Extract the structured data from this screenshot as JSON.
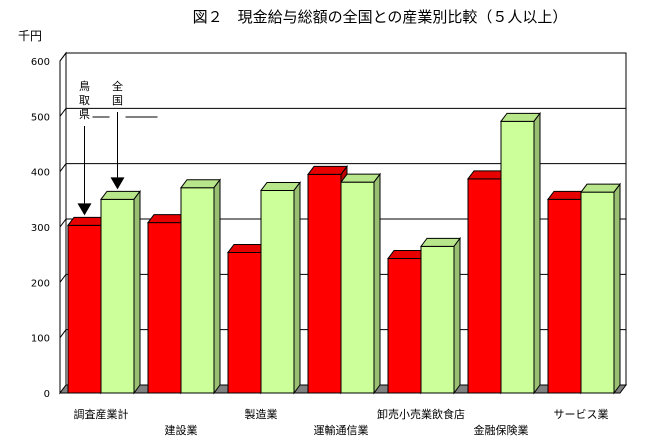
{
  "chart_data": {
    "type": "bar",
    "title": "図２　現金給与総額の全国との産業別比較（５人以上）",
    "ylabel": "千円",
    "xlabel": "",
    "ylim": [
      0,
      600
    ],
    "yticks": [
      0,
      100,
      200,
      300,
      400,
      500,
      600
    ],
    "grid": true,
    "chart_style": "3d-clustered-bar",
    "categories": [
      "調査産業計",
      "建設業",
      "製造業",
      "運輸通信業",
      "卸売小売業飲食店",
      "金融保険業",
      "サービス業"
    ],
    "series": [
      {
        "name": "鳥取県",
        "color": "#ff0000",
        "values": [
          303,
          308,
          254,
          395,
          243,
          387,
          350
        ]
      },
      {
        "name": "全国",
        "color": "#ccff99",
        "values": [
          350,
          371,
          366,
          381,
          265,
          491,
          363
        ]
      }
    ],
    "annotations": [
      {
        "text": "鳥取県",
        "series": "鳥取県"
      },
      {
        "text": "全国",
        "series": "全国"
      }
    ]
  }
}
